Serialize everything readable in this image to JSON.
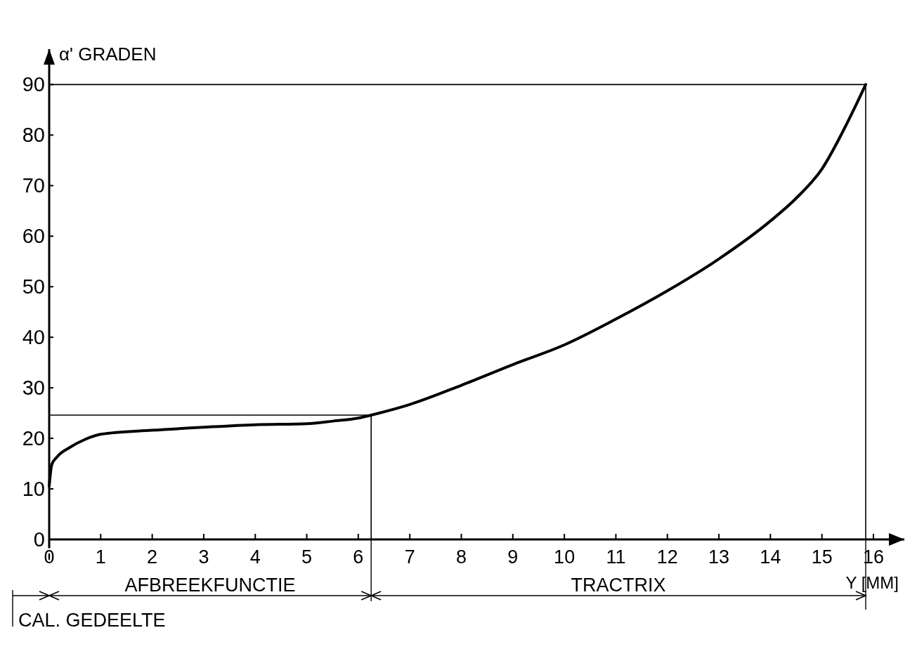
{
  "chart_data": {
    "type": "line",
    "xlabel": "Y [MM]",
    "ylabel": "α' GRADEN",
    "xlim": [
      0,
      16.6
    ],
    "ylim": [
      0,
      97
    ],
    "xticks": [
      0,
      1,
      2,
      3,
      4,
      5,
      6,
      7,
      8,
      9,
      10,
      11,
      12,
      13,
      14,
      15,
      16
    ],
    "yticks": [
      0,
      10,
      20,
      30,
      40,
      50,
      60,
      70,
      80,
      90
    ],
    "grid": false,
    "marker": "none",
    "annotations": [
      "AFBREEKFUNCTIE",
      "TRACTRIX",
      "CAL. GEDEELTE"
    ],
    "series": [
      {
        "color": "#000000",
        "x": [
          0,
          0.05,
          0.15,
          0.4,
          0.7,
          1,
          2,
          3,
          4,
          5,
          5.5,
          6,
          6.25,
          7,
          8,
          9,
          10,
          11,
          12,
          13,
          14,
          14.5,
          15,
          15.5,
          15.85
        ],
        "values": [
          10.5,
          14.8,
          16.3,
          18.2,
          19.8,
          20.8,
          21.6,
          22.2,
          22.7,
          22.9,
          23.4,
          24.0,
          24.6,
          26.7,
          30.5,
          34.6,
          38.5,
          43.6,
          49.2,
          55.5,
          63,
          67.5,
          73.3,
          82.6,
          90
        ]
      },
      {
        "color": "#000000",
        "line_style": "solid",
        "x": [
          0,
          6.25,
          6.25
        ],
        "values": [
          24.6,
          24.6,
          0
        ]
      },
      {
        "color": "#000000",
        "line_style": "solid",
        "x": [
          0,
          15.85,
          15.85
        ],
        "values": [
          90,
          90,
          0
        ]
      }
    ]
  }
}
